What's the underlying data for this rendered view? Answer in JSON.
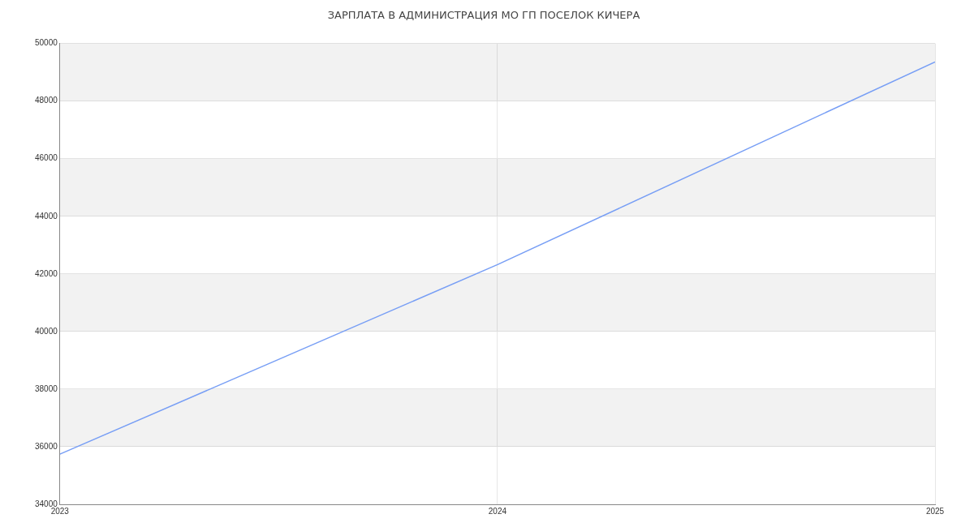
{
  "chart_data": {
    "type": "line",
    "title": "ЗАРПЛАТА В АДМИНИСТРАЦИЯ МО ГП ПОСЕЛОК КИЧЕРА",
    "x": [
      2023,
      2024,
      2025
    ],
    "series": [
      {
        "color": "#779ef5",
        "values": [
          35740,
          42320,
          49360
        ]
      }
    ],
    "xlim": [
      2023,
      2025
    ],
    "xticks": [
      2023,
      2024,
      2025
    ],
    "ylim": [
      34000,
      50000
    ],
    "yticks": [
      34000,
      36000,
      38000,
      40000,
      42000,
      44000,
      46000,
      48000,
      50000
    ],
    "grid": true,
    "legend": false,
    "marker": "none",
    "line_style": "solid"
  }
}
